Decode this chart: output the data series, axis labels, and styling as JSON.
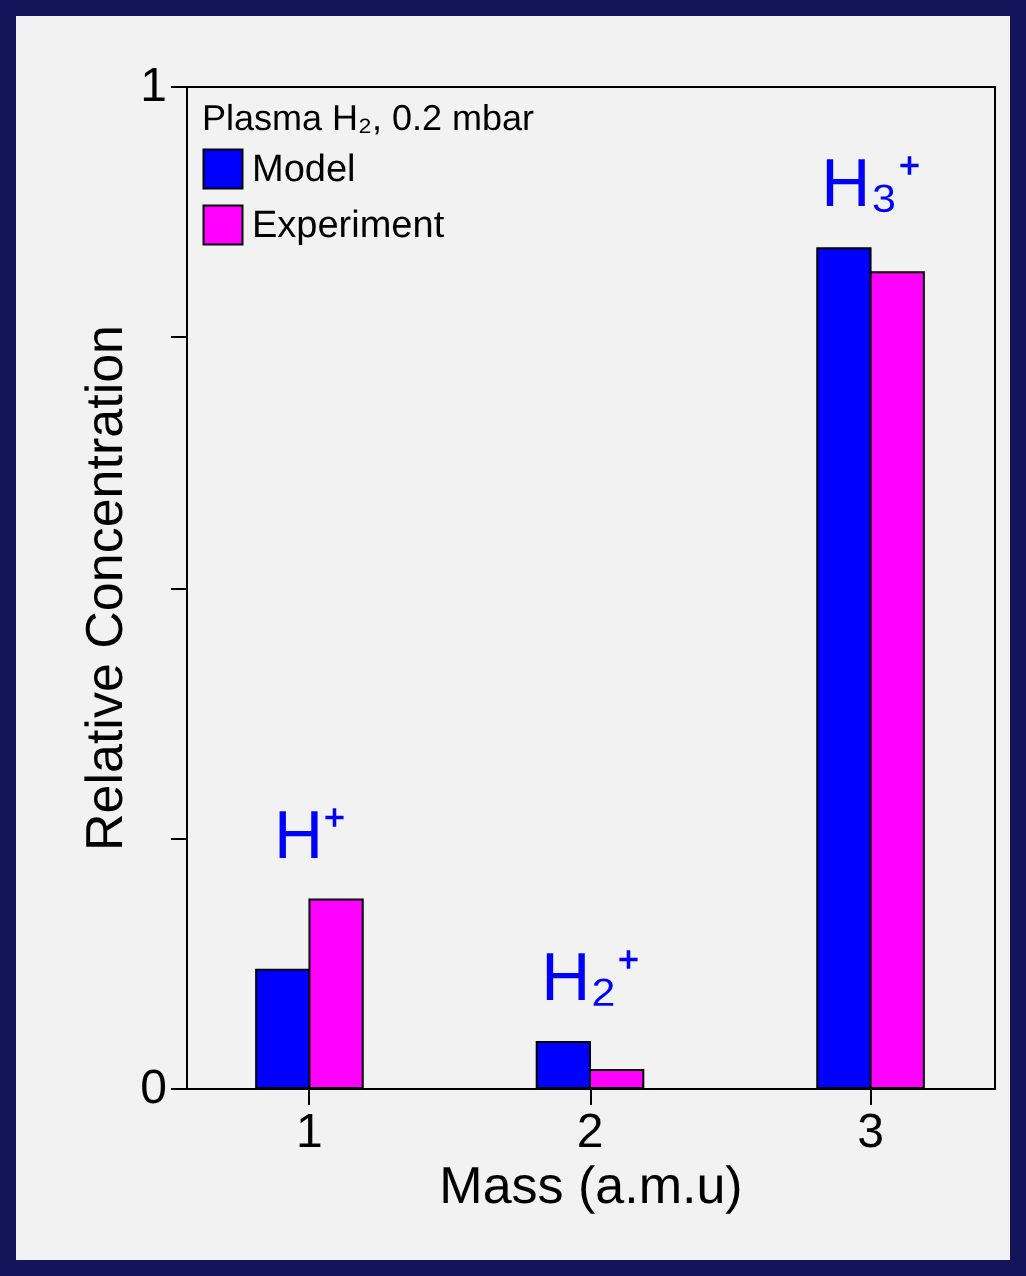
{
  "chart_data": {
    "type": "bar",
    "xlabel": "Mass (a.m.u)",
    "ylabel": "Relative Concentration",
    "categories": [
      "1",
      "2",
      "3"
    ],
    "series": [
      {
        "name": "Model",
        "color": "#0000ff",
        "values": [
          0.118,
          0.046,
          0.838
        ]
      },
      {
        "name": "Experiment",
        "color": "#ff00ff",
        "values": [
          0.188,
          0.018,
          0.814
        ]
      }
    ],
    "ylim": [
      0,
      1
    ],
    "yticks": [
      0,
      {
        "value": 0.25,
        "label": null
      },
      {
        "value": 0.5,
        "label": null
      },
      {
        "value": 0.75,
        "label": null
      },
      1
    ],
    "legend": "top left",
    "legend_title": "Plasma H₂, 0.2 mbar",
    "annotations": [
      "H⁺",
      "H₂⁺",
      "H₃⁺"
    ]
  }
}
